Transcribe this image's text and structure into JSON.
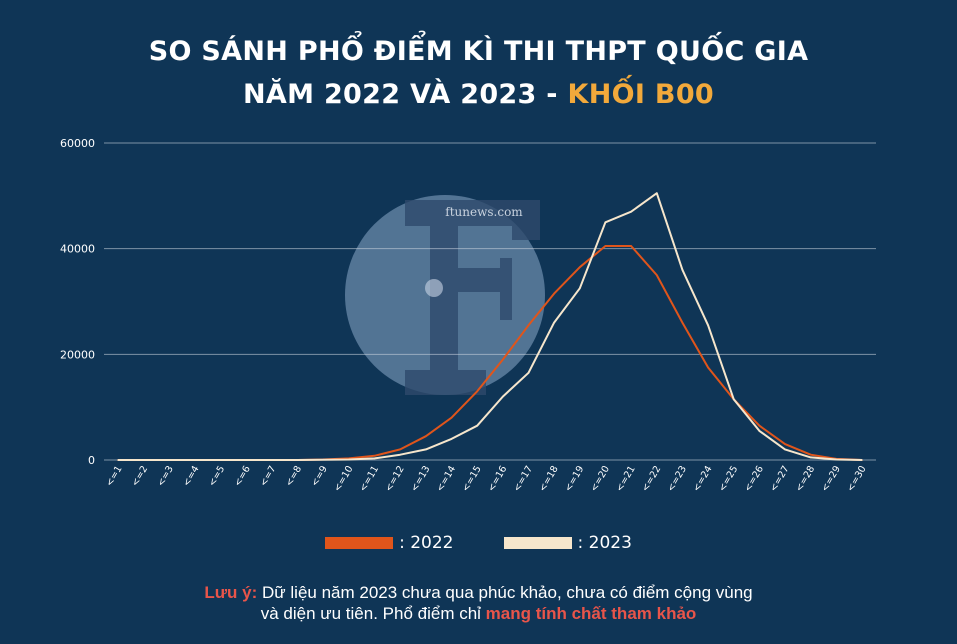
{
  "title": {
    "line1": "SO SÁNH PHỔ ĐIỂM KÌ THI THPT QUỐC GIA",
    "line2_main": "NĂM 2022 VÀ 2023 - ",
    "line2_highlight": "KHỐI B00"
  },
  "watermark": {
    "text": "ftunews.com",
    "letter": "F"
  },
  "chart_data": {
    "type": "line",
    "categories": [
      "<=1",
      "<=2",
      "<=3",
      "<=4",
      "<=5",
      "<=6",
      "<=7",
      "<=8",
      "<=9",
      "<=10",
      "<=11",
      "<=12",
      "<=13",
      "<=14",
      "<=15",
      "<=16",
      "<=17",
      "<=18",
      "<=19",
      "<=20",
      "<=21",
      "<=22",
      "<=23",
      "<=24",
      "<=25",
      "<=26",
      "<=27",
      "<=28",
      "<=29",
      "<=30"
    ],
    "series": [
      {
        "name": "2022",
        "color": "#e0551b",
        "values": [
          0,
          0,
          0,
          0,
          0,
          0,
          0,
          0,
          100,
          300,
          800,
          2000,
          4500,
          8000,
          13000,
          19000,
          25500,
          31500,
          36500,
          40500,
          40500,
          35000,
          26000,
          17500,
          11500,
          6500,
          3000,
          1000,
          200,
          0
        ]
      },
      {
        "name": "2023",
        "color": "#f6e6cc",
        "values": [
          0,
          0,
          0,
          0,
          0,
          0,
          0,
          0,
          50,
          100,
          300,
          1000,
          2000,
          4000,
          6500,
          12000,
          16500,
          26000,
          32500,
          45000,
          47000,
          50500,
          36000,
          25500,
          11500,
          5500,
          2000,
          500,
          100,
          0
        ]
      }
    ],
    "ylim": [
      0,
      60000
    ],
    "yticks": [
      "0",
      "20000",
      "40000",
      "60000"
    ],
    "grid": true,
    "legend": "bottom"
  },
  "legend": [
    {
      "label": ": 2022",
      "color": "#e0551b"
    },
    {
      "label": ": 2023",
      "color": "#f6e6cc"
    }
  ],
  "note": {
    "label": "Lưu ý:",
    "text1": " Dữ liệu năm 2023 chưa qua phúc khảo, chưa có điểm cộng vùng",
    "text2_pre": "và diện ưu tiên. Phổ điểm chỉ ",
    "text2_highlight": "mang tính chất tham khảo"
  }
}
